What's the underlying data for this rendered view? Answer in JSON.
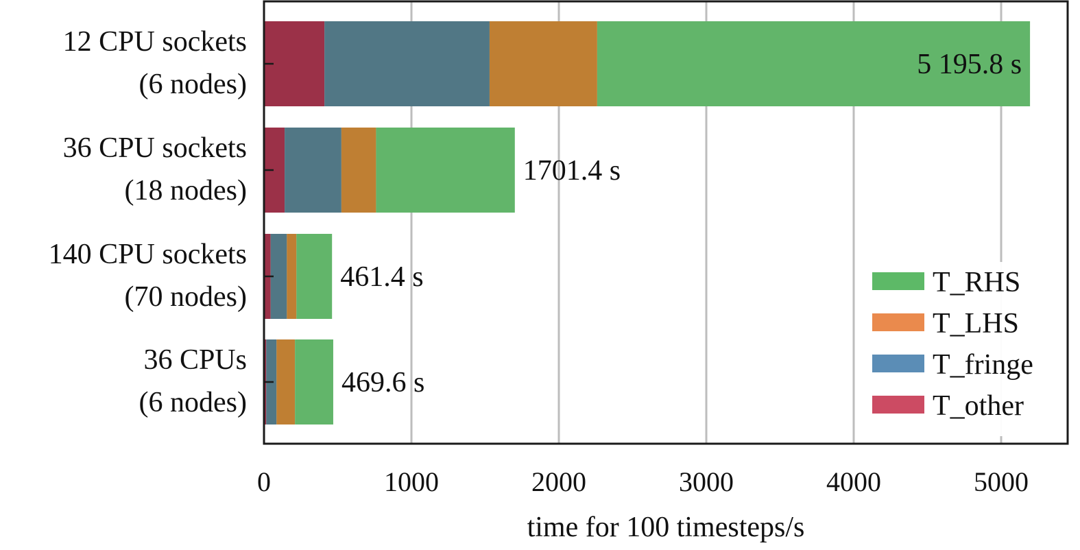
{
  "chart_data": {
    "type": "bar",
    "orientation": "horizontal",
    "stacked": true,
    "xlabel": "time for 100 timesteps/s",
    "xlim": [
      0,
      5400
    ],
    "xticks": [
      0,
      1000,
      2000,
      3000,
      4000,
      5000
    ],
    "grid": "vertical",
    "legend_position": "bottom-right",
    "categories": [
      {
        "line1": "12 CPU sockets",
        "line2": "(6 nodes)"
      },
      {
        "line1": "36 CPU sockets",
        "line2": "(18 nodes)"
      },
      {
        "line1": "140 CPU sockets",
        "line2": "(70 nodes)"
      },
      {
        "line1": "36 CPUs",
        "line2": "(6 nodes)"
      }
    ],
    "series": [
      {
        "name": "T_other",
        "color": "#9b3148",
        "legend_color": "#cc4b63",
        "values": [
          410,
          140,
          45,
          15
        ]
      },
      {
        "name": "T_fringe",
        "color": "#517785",
        "legend_color": "#5b8db6",
        "values": [
          1120,
          385,
          110,
          70
        ]
      },
      {
        "name": "T_LHS",
        "color": "#bf7f33",
        "legend_color": "#ea8a4d",
        "values": [
          730,
          235,
          65,
          125
        ]
      },
      {
        "name": "T_RHS",
        "color": "#62b56a",
        "legend_color": "#5db967",
        "values": [
          2935.8,
          941.4,
          241.4,
          259.6
        ]
      }
    ],
    "legend_order": [
      "T_RHS",
      "T_LHS",
      "T_fringe",
      "T_other"
    ],
    "totals": [
      5195.8,
      1701.4,
      461.4,
      469.6
    ],
    "total_labels": [
      "5 195.8 s",
      "1701.4 s",
      "461.4 s",
      "469.6 s"
    ],
    "total_label_inside": [
      true,
      false,
      false,
      false
    ]
  }
}
